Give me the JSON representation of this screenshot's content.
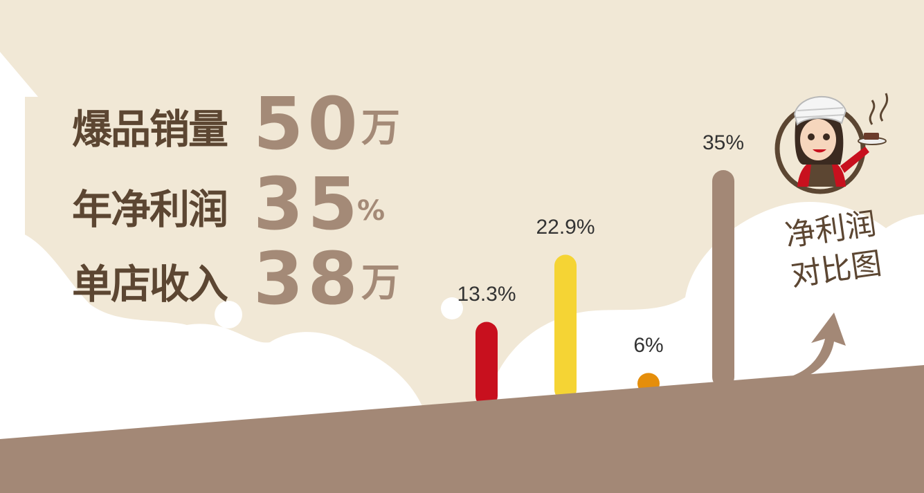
{
  "stats": [
    {
      "label": "爆品销量",
      "value": "50",
      "unit": "万"
    },
    {
      "label": "年净利润",
      "value": "35",
      "unit": "%"
    },
    {
      "label": "单店收入",
      "value": "38",
      "unit": "万"
    }
  ],
  "chart_title_line1": "净利润",
  "chart_title_line2": "对比图",
  "colors": {
    "background": "#f1e8d6",
    "ground": "#a38876",
    "dark_text": "#5c4632",
    "accent_brown": "#a48a77"
  },
  "icons": [
    "chef-mascot-icon",
    "growth-arrow-icon"
  ],
  "chart_data": {
    "type": "bar",
    "title": "净利润对比图",
    "categories": [
      "",
      "",
      "",
      ""
    ],
    "values": [
      13.3,
      22.9,
      6,
      35
    ],
    "labels": [
      "13.3%",
      "22.9%",
      "6%",
      "35%"
    ],
    "colors": [
      "#c8101e",
      "#f5d434",
      "#e58e0b",
      "#a38876"
    ],
    "ylim": [
      0,
      35
    ],
    "grid": false,
    "legend": "none"
  }
}
